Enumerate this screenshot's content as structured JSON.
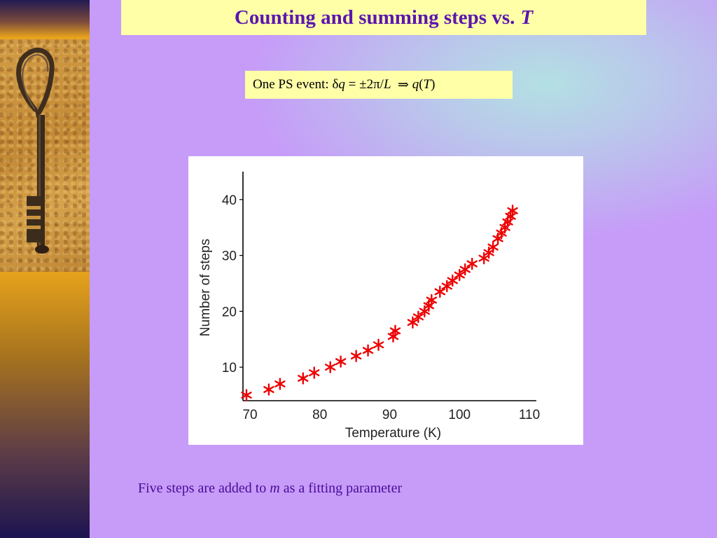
{
  "slide": {
    "title": "Counting and summing steps vs.",
    "title_variable": "T",
    "formula": {
      "prefix": "One PS event: ",
      "delta": "δ",
      "q": "q",
      "equals": " = ±2π/",
      "L": "L",
      "arrow": "  ⇒ ",
      "q2": "q",
      "open": "(",
      "T": "T",
      "close": ")"
    },
    "caption": {
      "before": "Five steps are added to ",
      "m": "m",
      "after": " as a fitting parameter"
    }
  },
  "decorations": {
    "key_image": "iron-key-icon",
    "colors": {
      "main_background": "#c69cf8",
      "highlight_box": "#ffffa8",
      "title_text": "#5a16b0",
      "marker": "#ee0000"
    }
  },
  "chart_data": {
    "type": "scatter",
    "xlabel": "Temperature (K)",
    "ylabel": "Number of steps",
    "xlim": [
      69,
      111
    ],
    "ylim": [
      4,
      45
    ],
    "xticks": [
      70,
      80,
      90,
      100,
      110
    ],
    "yticks": [
      10,
      20,
      30,
      40
    ],
    "xtick_labels": [
      "70",
      "80",
      "90",
      "100",
      "110"
    ],
    "ytick_labels": [
      "10",
      "20",
      "30",
      "40"
    ],
    "grid": false,
    "marker": "asterisk",
    "marker_color": "#ee0000",
    "series": [
      {
        "x": [
          69.5,
          72.7,
          74.3,
          77.6,
          79.2,
          81.5,
          83.0,
          85.2,
          86.9,
          88.4,
          90.5,
          90.8,
          93.3,
          94.1,
          95.0,
          95.6,
          96.0,
          97.2,
          98.2,
          99.0,
          100.0,
          100.8,
          101.8,
          103.5,
          104.2,
          104.8,
          105.5,
          106.0,
          106.5,
          106.9,
          107.3,
          107.6
        ],
        "y": [
          5,
          6,
          7,
          8,
          9,
          10,
          11,
          12,
          13,
          14,
          15.5,
          16.5,
          18,
          19,
          20,
          21,
          22,
          23.5,
          24.5,
          25.5,
          26.5,
          27.5,
          28.5,
          29.5,
          30.5,
          31.5,
          33,
          34,
          35,
          36,
          37,
          38
        ]
      }
    ]
  }
}
